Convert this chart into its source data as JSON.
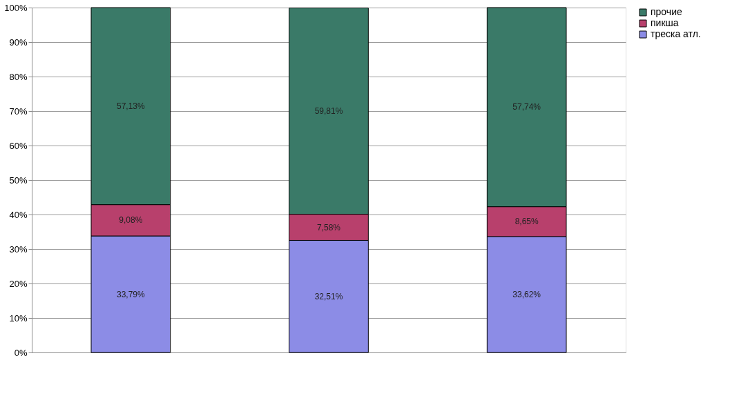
{
  "chart_data": {
    "type": "bar",
    "stacked": true,
    "categories": [
      null,
      null,
      null
    ],
    "series": [
      {
        "name": "треска атл.",
        "color": "#8c8ce6",
        "values": [
          33.79,
          32.51,
          33.62
        ],
        "value_labels": [
          "33,79%",
          "32,51%",
          "33,62%"
        ]
      },
      {
        "name": "пикша",
        "color": "#b8406c",
        "values": [
          9.08,
          7.58,
          8.65
        ],
        "value_labels": [
          "9,08%",
          "7,58%",
          "8,65%"
        ]
      },
      {
        "name": "прочие",
        "color": "#3a7a68",
        "values": [
          57.13,
          59.81,
          57.74
        ],
        "value_labels": [
          "57,13%",
          "59,81%",
          "57,74%"
        ]
      }
    ],
    "ylim": [
      0,
      100
    ],
    "yticks": [
      {
        "value": 0,
        "label": "0%"
      },
      {
        "value": 10,
        "label": "10%"
      },
      {
        "value": 20,
        "label": "20%"
      },
      {
        "value": 30,
        "label": "30%"
      },
      {
        "value": 40,
        "label": "40%"
      },
      {
        "value": 50,
        "label": "50%"
      },
      {
        "value": 60,
        "label": "60%"
      },
      {
        "value": 70,
        "label": "70%"
      },
      {
        "value": 80,
        "label": "80%"
      },
      {
        "value": 90,
        "label": "90%"
      },
      {
        "value": 100,
        "label": "100%"
      }
    ],
    "grid": "y",
    "legend": "right",
    "tick_labels": "y"
  }
}
